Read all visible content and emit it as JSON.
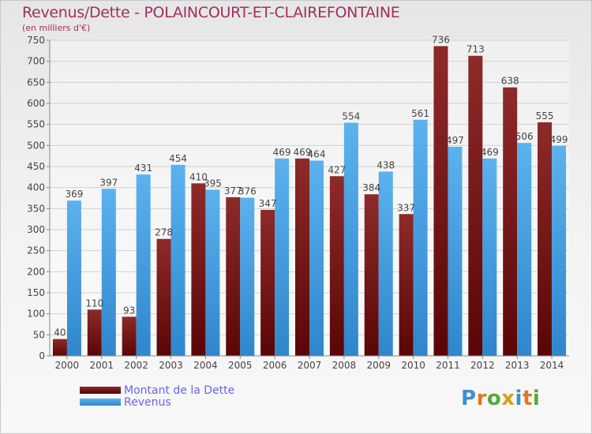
{
  "chart_data": {
    "type": "bar",
    "title": "Revenus/Dette - POLAINCOURT-ET-CLAIREFONTAINE",
    "subtitle": "(en milliers d'€)",
    "categories": [
      "2000",
      "2001",
      "2002",
      "2003",
      "2004",
      "2005",
      "2006",
      "2007",
      "2008",
      "2009",
      "2010",
      "2011",
      "2012",
      "2013",
      "2014"
    ],
    "series": [
      {
        "name": "Montant de la Dette",
        "color": "#8b1a1a",
        "values": [
          40,
          110,
          93,
          278,
          410,
          377,
          347,
          469,
          427,
          384,
          337,
          736,
          713,
          638,
          555
        ]
      },
      {
        "name": "Revenus",
        "color": "#4da6e8",
        "values": [
          369,
          397,
          431,
          454,
          395,
          376,
          469,
          464,
          554,
          438,
          561,
          497,
          469,
          506,
          499
        ]
      }
    ],
    "ylim": [
      0,
      750
    ],
    "yticks": [
      0,
      50,
      100,
      150,
      200,
      250,
      300,
      350,
      400,
      450,
      500,
      550,
      600,
      650,
      700,
      750
    ],
    "grid": true,
    "legend": "bottom-left"
  },
  "logo": {
    "text": "Proxiti"
  }
}
